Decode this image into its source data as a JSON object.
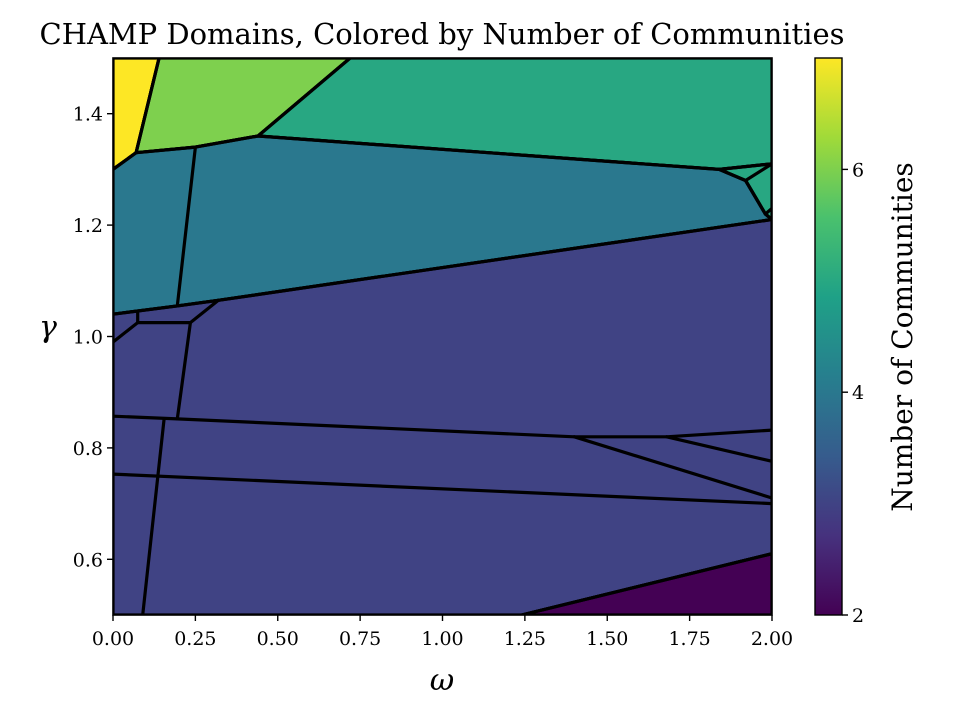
{
  "chart_data": {
    "type": "heatmap",
    "title": "CHAMP Domains, Colored by Number of Communities",
    "xlabel": "ω",
    "ylabel": "γ",
    "xlim": [
      0.0,
      2.0
    ],
    "ylim": [
      0.5,
      1.5
    ],
    "x_ticks": [
      "0.00",
      "0.25",
      "0.50",
      "0.75",
      "1.00",
      "1.25",
      "1.50",
      "1.75",
      "2.00"
    ],
    "y_ticks": [
      "0.6",
      "0.8",
      "1.0",
      "1.2",
      "1.4"
    ],
    "grid": false,
    "colorbar": {
      "label": "Number of Communities",
      "colormap": "viridis",
      "range": [
        2,
        7
      ],
      "ticks": [
        "2",
        "4",
        "6"
      ]
    },
    "domains": [
      {
        "communities": 7,
        "polygon": [
          [
            0.0,
            1.5
          ],
          [
            0.14,
            1.5
          ],
          [
            0.07,
            1.33
          ],
          [
            0.0,
            1.3
          ]
        ]
      },
      {
        "communities": 6,
        "polygon": [
          [
            0.14,
            1.5
          ],
          [
            0.72,
            1.5
          ],
          [
            0.44,
            1.36
          ],
          [
            0.25,
            1.34
          ],
          [
            0.07,
            1.33
          ]
        ]
      },
      {
        "communities": 5,
        "polygon": [
          [
            0.72,
            1.5
          ],
          [
            2.0,
            1.5
          ],
          [
            2.0,
            1.31
          ],
          [
            1.84,
            1.3
          ],
          [
            0.44,
            1.36
          ]
        ]
      },
      {
        "communities": 4,
        "polygon": [
          [
            0.0,
            1.3
          ],
          [
            0.07,
            1.33
          ],
          [
            0.25,
            1.34
          ],
          [
            0.44,
            1.36
          ],
          [
            1.84,
            1.3
          ],
          [
            1.92,
            1.28
          ],
          [
            1.98,
            1.22
          ],
          [
            2.0,
            1.21
          ],
          [
            0.32,
            1.065
          ],
          [
            0.195,
            1.055
          ],
          [
            0.0,
            1.04
          ]
        ]
      },
      {
        "communities": 5,
        "polygon": [
          [
            1.84,
            1.3
          ],
          [
            2.0,
            1.31
          ],
          [
            2.0,
            1.21
          ],
          [
            1.98,
            1.22
          ],
          [
            1.92,
            1.28
          ]
        ]
      },
      {
        "communities": 3,
        "polygon": [
          [
            0.0,
            1.04
          ],
          [
            0.195,
            1.055
          ],
          [
            0.32,
            1.065
          ],
          [
            2.0,
            1.21
          ],
          [
            2.0,
            0.61
          ],
          [
            1.24,
            0.5
          ],
          [
            0.0,
            0.5
          ]
        ]
      },
      {
        "communities": 2,
        "polygon": [
          [
            1.24,
            0.5
          ],
          [
            2.0,
            0.61
          ],
          [
            2.0,
            0.5
          ]
        ]
      }
    ],
    "boundaries": [
      [
        [
          0.14,
          1.5
        ],
        [
          0.07,
          1.33
        ]
      ],
      [
        [
          0.0,
          1.3
        ],
        [
          0.07,
          1.33
        ],
        [
          0.25,
          1.34
        ],
        [
          0.44,
          1.36
        ],
        [
          0.72,
          1.5
        ]
      ],
      [
        [
          0.44,
          1.36
        ],
        [
          1.84,
          1.3
        ],
        [
          2.0,
          1.31
        ]
      ],
      [
        [
          1.84,
          1.3
        ],
        [
          1.92,
          1.28
        ],
        [
          1.98,
          1.22
        ],
        [
          2.0,
          1.21
        ]
      ],
      [
        [
          1.92,
          1.28
        ],
        [
          2.0,
          1.31
        ]
      ],
      [
        [
          1.98,
          1.22
        ],
        [
          2.0,
          1.23
        ]
      ],
      [
        [
          0.25,
          1.34
        ],
        [
          0.195,
          1.055
        ]
      ],
      [
        [
          0.0,
          1.04
        ],
        [
          0.195,
          1.055
        ],
        [
          0.32,
          1.065
        ],
        [
          2.0,
          1.21
        ]
      ],
      [
        [
          0.0,
          0.99
        ],
        [
          0.075,
          1.025
        ],
        [
          0.235,
          1.025
        ],
        [
          0.32,
          1.065
        ]
      ],
      [
        [
          0.075,
          1.025
        ],
        [
          0.075,
          1.045
        ]
      ],
      [
        [
          0.235,
          1.025
        ],
        [
          0.195,
          0.852
        ]
      ],
      [
        [
          0.0,
          0.857
        ],
        [
          0.195,
          0.852
        ],
        [
          1.4,
          0.82
        ],
        [
          1.68,
          0.82
        ],
        [
          2.0,
          0.832
        ]
      ],
      [
        [
          1.4,
          0.82
        ],
        [
          2.0,
          0.71
        ]
      ],
      [
        [
          1.68,
          0.82
        ],
        [
          2.0,
          0.776
        ]
      ],
      [
        [
          0.0,
          0.753
        ],
        [
          2.0,
          0.7
        ]
      ],
      [
        [
          0.155,
          0.852
        ],
        [
          0.09,
          0.5
        ]
      ],
      [
        [
          1.24,
          0.5
        ],
        [
          2.0,
          0.61
        ]
      ]
    ]
  }
}
